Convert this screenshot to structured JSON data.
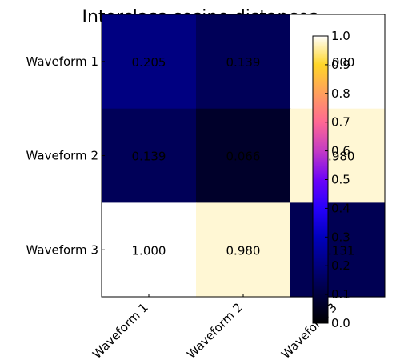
{
  "chart_data": {
    "type": "heatmap",
    "title": "Interclass cosine distances",
    "row_labels": [
      "Waveform 1",
      "Waveform 2",
      "Waveform 3"
    ],
    "col_labels": [
      "Waveform 1",
      "Waveform 2",
      "Waveform 3"
    ],
    "values": [
      [
        0.205,
        0.139,
        1.0
      ],
      [
        0.139,
        0.066,
        0.98
      ],
      [
        1.0,
        0.98,
        0.131
      ]
    ],
    "value_format": "3 decimals",
    "colormap": "gnuplot2",
    "colorbar": {
      "min": 0.0,
      "max": 1.0,
      "ticks": [
        "0.0",
        "0.1",
        "0.2",
        "0.3",
        "0.4",
        "0.5",
        "0.6",
        "0.7",
        "0.8",
        "0.9",
        "1.0"
      ]
    },
    "grid": false
  }
}
